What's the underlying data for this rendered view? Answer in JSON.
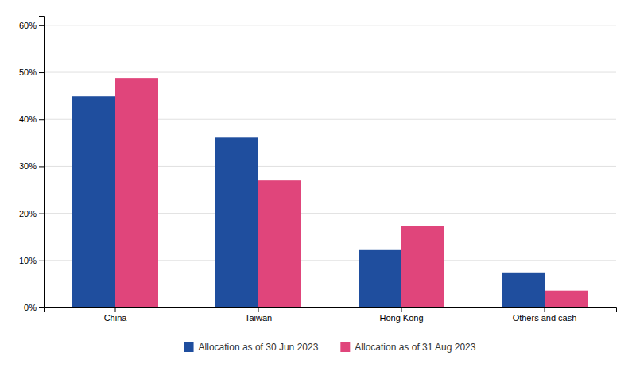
{
  "chart_data": {
    "type": "bar",
    "categories": [
      "China",
      "Taiwan",
      "Hong Kong",
      "Others and cash"
    ],
    "series": [
      {
        "name": "Allocation as of 30 Jun 2023",
        "color": "#1f4e9e",
        "values": [
          0.449,
          0.361,
          0.122,
          0.073
        ]
      },
      {
        "name": "Allocation as of 31 Aug 2023",
        "color": "#e0457b",
        "values": [
          0.488,
          0.27,
          0.173,
          0.036
        ]
      }
    ],
    "ylim": [
      0,
      0.62
    ],
    "yticks": [
      {
        "value": 0.0,
        "label": "0%"
      },
      {
        "value": 0.1,
        "label": "10%"
      },
      {
        "value": 0.2,
        "label": "20%"
      },
      {
        "value": 0.3,
        "label": "30%"
      },
      {
        "value": 0.4,
        "label": "40%"
      },
      {
        "value": 0.5,
        "label": "50%"
      },
      {
        "value": 0.6,
        "label": "60%"
      }
    ],
    "grid": true,
    "legend": "bottom"
  }
}
